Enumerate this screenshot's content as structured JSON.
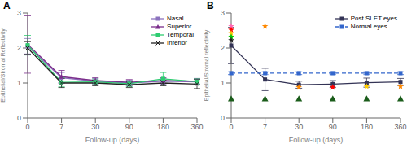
{
  "chart_data": [
    {
      "type": "line",
      "title": "A",
      "x_label": "Follow-up (days)",
      "y_label": "Epithelial/Stromal Reflectivity",
      "categories": [
        "0",
        "7",
        "30",
        "90",
        "180",
        "360"
      ],
      "series": [
        {
          "name": "Nasal",
          "color": "#8b72be",
          "marker": "square",
          "line_style": "solid",
          "values": [
            2.05,
            1.15,
            1.05,
            1.0,
            1.05,
            1.03
          ],
          "errors": [
            0.22,
            0.15,
            0.08,
            0.08,
            0.08,
            0.08
          ]
        },
        {
          "name": "Superior",
          "color": "#7b2d8b",
          "marker": "triangle",
          "line_style": "solid",
          "values": [
            2.1,
            1.18,
            1.07,
            1.02,
            1.07,
            1.05
          ],
          "errors": [
            0.82,
            0.18,
            0.08,
            0.08,
            0.08,
            0.08
          ]
        },
        {
          "name": "Temporal",
          "color": "#2ecc71",
          "marker": "square",
          "line_style": "solid",
          "values": [
            2.08,
            1.02,
            1.03,
            0.98,
            1.12,
            1.04
          ],
          "errors": [
            0.28,
            0.13,
            0.08,
            0.08,
            0.18,
            0.08
          ]
        },
        {
          "name": "Inferior",
          "color": "#222222",
          "marker": "x",
          "line_style": "solid",
          "values": [
            2.0,
            1.0,
            1.0,
            0.95,
            1.0,
            0.97
          ],
          "errors": [
            0.18,
            0.13,
            0.08,
            0.08,
            0.08,
            0.13
          ]
        }
      ],
      "ylim": [
        0,
        3
      ],
      "yticks": [
        0,
        1,
        2,
        3
      ],
      "grid": false,
      "legend": "upper right"
    },
    {
      "type": "line",
      "title": "B",
      "x_label": "Follow-up (days)",
      "y_label": "Epithelial/Stromal reflectivity",
      "categories": [
        "0",
        "7",
        "30",
        "90",
        "180",
        "360"
      ],
      "series": [
        {
          "name": "Post SLET eyes",
          "color": "#333355",
          "marker": "square",
          "line_style": "solid",
          "values": [
            2.07,
            1.1,
            0.95,
            0.97,
            1.01,
            1.03
          ],
          "errors": [
            0.52,
            0.32,
            0.1,
            0.1,
            0.13,
            0.1
          ]
        },
        {
          "name": "Normal eyes",
          "color": "#3366cc",
          "marker": "square",
          "line_style": "dashed",
          "values": [
            1.28,
            1.28,
            1.28,
            1.28,
            1.28,
            1.28
          ],
          "errors": [
            0.04,
            0.04,
            0.04,
            0.04,
            0.04,
            0.04
          ]
        }
      ],
      "markers": [
        {
          "category": "0",
          "y": 2.62,
          "color": "#ff69b4",
          "marker": "star"
        },
        {
          "category": "0",
          "y": 2.52,
          "color": "#ff0000",
          "marker": "star"
        },
        {
          "category": "0",
          "y": 2.42,
          "color": "#ffcc00",
          "marker": "star"
        },
        {
          "category": "0",
          "y": 2.32,
          "color": "#00cc00",
          "marker": "star"
        },
        {
          "category": "0",
          "y": 2.22,
          "color": "#222222",
          "marker": "star"
        },
        {
          "category": "7",
          "y": 2.62,
          "color": "#ff8800",
          "marker": "star"
        },
        {
          "category": "30",
          "y": 0.88,
          "color": "#ff8800",
          "marker": "star"
        },
        {
          "category": "90",
          "y": 0.88,
          "color": "#ff0000",
          "marker": "star"
        },
        {
          "category": "180",
          "y": 0.9,
          "color": "#ffcc00",
          "marker": "star"
        },
        {
          "category": "360",
          "y": 0.9,
          "color": "#ff8800",
          "marker": "star"
        },
        {
          "category": "0",
          "y": 0.55,
          "color": "#1a5c1a",
          "marker": "triangle"
        },
        {
          "category": "7",
          "y": 0.55,
          "color": "#1a5c1a",
          "marker": "triangle"
        },
        {
          "category": "30",
          "y": 0.55,
          "color": "#1a5c1a",
          "marker": "triangle"
        },
        {
          "category": "90",
          "y": 0.55,
          "color": "#1a5c1a",
          "marker": "triangle"
        },
        {
          "category": "180",
          "y": 0.55,
          "color": "#1a5c1a",
          "marker": "triangle"
        },
        {
          "category": "360",
          "y": 0.55,
          "color": "#1a5c1a",
          "marker": "triangle"
        }
      ],
      "ylim": [
        0,
        3
      ],
      "yticks": [
        0,
        1,
        2,
        3
      ],
      "grid": false,
      "legend": "upper right"
    }
  ]
}
